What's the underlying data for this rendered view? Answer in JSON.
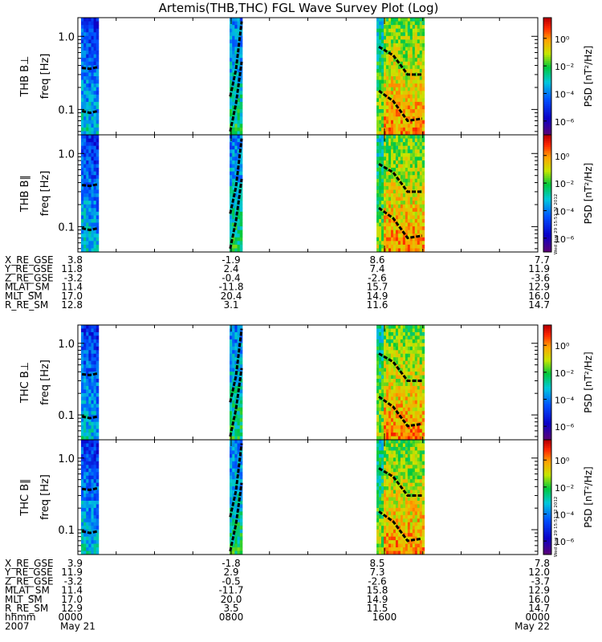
{
  "title": "Artemis(THB,THC) FGL Wave Survey Plot (Log)",
  "colorbar": {
    "label": "PSD [nT²/Hz]",
    "ticks": [
      "10⁰",
      "10⁻²",
      "10⁻⁴",
      "10⁻⁶"
    ],
    "stamp": "Wed Aug 29 15:51:32 2012"
  },
  "chart_data": {
    "type": "heatmap",
    "time_range_hhmm": [
      "0000",
      "2400"
    ],
    "freq_axis": {
      "label": "freq [Hz]",
      "scale": "log",
      "ticks": [
        "1.0",
        "0.1"
      ],
      "range": [
        0.045,
        1.8
      ]
    },
    "data_intervals_hhmm": [
      [
        "0010",
        "0105"
      ],
      [
        "0755",
        "0835"
      ],
      [
        "1535",
        "1805"
      ]
    ],
    "panels": [
      {
        "name": "THB B⊥",
        "probe": "thb",
        "component": "perp"
      },
      {
        "name": "THB B∥",
        "probe": "thb",
        "component": "par"
      },
      {
        "name": "THC B⊥",
        "probe": "thc",
        "component": "perp"
      },
      {
        "name": "THC B∥",
        "probe": "thc",
        "component": "par"
      }
    ],
    "colorbar": {
      "label": "PSD [nT²/Hz]",
      "scale": "log",
      "range_exp": [
        -7,
        1.5
      ]
    }
  },
  "ephem_blocks": [
    {
      "probe": "THB",
      "rows": [
        {
          "label": "X_RE_GSE",
          "values": [
            "3.8",
            "-1.9",
            "8.6",
            "7.7"
          ]
        },
        {
          "label": "Y_RE_GSE",
          "values": [
            "11.8",
            "2.4",
            "7.4",
            "11.9"
          ]
        },
        {
          "label": "Z_RE_GSE",
          "values": [
            "-3.2",
            "-0.4",
            "-2.6",
            "-3.6"
          ]
        },
        {
          "label": "MLAT_SM",
          "values": [
            "11.4",
            "-11.8",
            "15.7",
            "12.9"
          ]
        },
        {
          "label": "MLT_SM",
          "values": [
            "17.0",
            "20.4",
            "14.9",
            "16.0"
          ]
        },
        {
          "label": "R_RE_SM",
          "values": [
            "12.8",
            "3.1",
            "11.6",
            "14.7"
          ]
        }
      ]
    },
    {
      "probe": "THC",
      "rows": [
        {
          "label": "X_RE_GSE",
          "values": [
            "3.9",
            "-1.8",
            "8.5",
            "7.8"
          ]
        },
        {
          "label": "Y_RE_GSE",
          "values": [
            "11.9",
            "2.9",
            "7.3",
            "12.0"
          ]
        },
        {
          "label": "Z_RE_GSE",
          "values": [
            "-3.2",
            "-0.5",
            "-2.6",
            "-3.7"
          ]
        },
        {
          "label": "MLAT_SM",
          "values": [
            "11.4",
            "-11.7",
            "15.8",
            "12.9"
          ]
        },
        {
          "label": "MLT_SM",
          "values": [
            "17.0",
            "20.0",
            "14.9",
            "16.0"
          ]
        },
        {
          "label": "R_RE_SM",
          "values": [
            "12.9",
            "3.5",
            "11.5",
            "14.7"
          ]
        }
      ]
    }
  ],
  "time_axis": {
    "hhmm_label": "hhmm",
    "hhmm_values": [
      "0000",
      "0800",
      "1600",
      "0000"
    ],
    "year": "2007",
    "dates": [
      "May 21",
      "May 22"
    ]
  }
}
